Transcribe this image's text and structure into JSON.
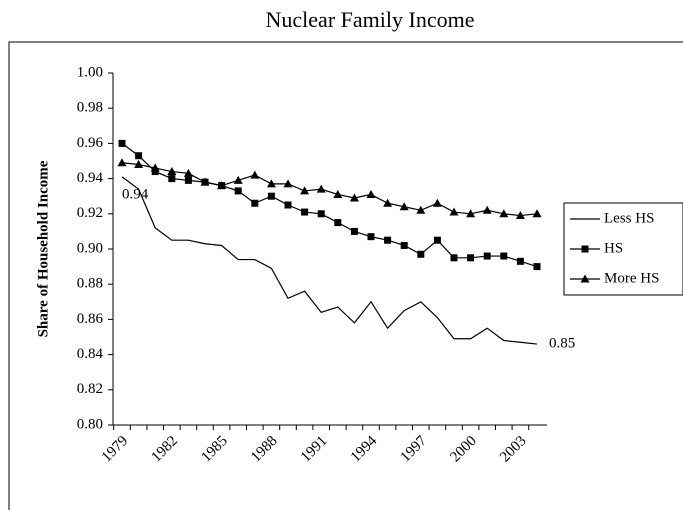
{
  "chart_data": {
    "type": "line",
    "title": "Nuclear Family Income",
    "y_label": "Share of Household Income",
    "categories": [
      "1979",
      null,
      null,
      "1982",
      null,
      null,
      "1985",
      null,
      null,
      "1988",
      null,
      null,
      "1991",
      null,
      null,
      "1994",
      null,
      null,
      "1997",
      null,
      null,
      "2000",
      null,
      null,
      "2003",
      null
    ],
    "series": [
      {
        "name": "Less HS",
        "color": "#000000",
        "marker": "none",
        "values": [
          0.941,
          0.934,
          0.912,
          0.905,
          0.905,
          0.903,
          0.902,
          0.894,
          0.894,
          0.889,
          0.872,
          0.876,
          0.864,
          0.867,
          0.858,
          0.87,
          0.855,
          0.865,
          0.87,
          0.861,
          0.849,
          0.849,
          0.855,
          0.848,
          0.847,
          0.846
        ]
      },
      {
        "name": "HS",
        "color": "#000000",
        "marker": "square",
        "values": [
          0.96,
          0.953,
          0.944,
          0.94,
          0.939,
          0.938,
          0.936,
          0.933,
          0.926,
          0.93,
          0.925,
          0.921,
          0.92,
          0.915,
          0.91,
          0.907,
          0.905,
          0.902,
          0.897,
          0.905,
          0.895,
          0.895,
          0.896,
          0.896,
          0.893,
          0.89
        ]
      },
      {
        "name": "More HS",
        "color": "#000000",
        "marker": "triangle",
        "values": [
          0.949,
          0.948,
          0.946,
          0.944,
          0.943,
          0.938,
          0.936,
          0.939,
          0.942,
          0.937,
          0.937,
          0.933,
          0.934,
          0.931,
          0.929,
          0.931,
          0.926,
          0.924,
          0.922,
          0.926,
          0.921,
          0.92,
          0.922,
          0.92,
          0.919,
          0.92
        ]
      }
    ],
    "annotations": [
      "0.94",
      "0.85"
    ],
    "ylim": [
      0.8,
      1.0
    ],
    "yticks": [
      {
        "value": 0.8,
        "label": "0.80"
      },
      {
        "value": 0.82,
        "label": "0.82"
      },
      {
        "value": 0.84,
        "label": "0.84"
      },
      {
        "value": 0.86,
        "label": "0.86"
      },
      {
        "value": 0.88,
        "label": "0.88"
      },
      {
        "value": 0.9,
        "label": "0.90"
      },
      {
        "value": 0.92,
        "label": "0.92"
      },
      {
        "value": 0.94,
        "label": "0.94"
      },
      {
        "value": 0.96,
        "label": "0.96"
      },
      {
        "value": 0.98,
        "label": "0.98"
      },
      {
        "value": 1.0,
        "label": "1.00"
      }
    ],
    "grid": false,
    "legend": "right"
  }
}
